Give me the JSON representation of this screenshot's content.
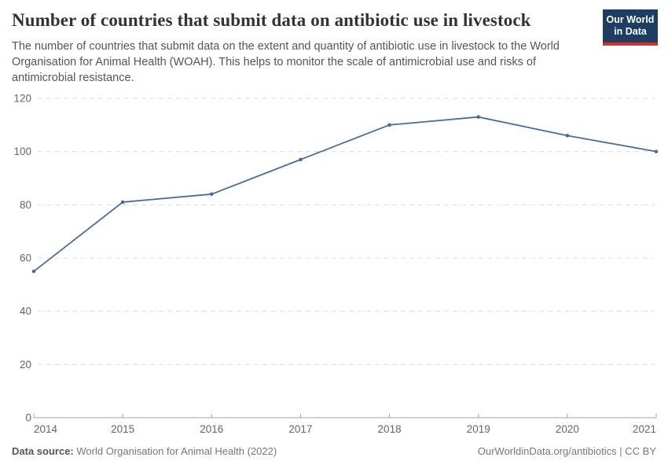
{
  "header": {
    "title": "Number of countries that submit data on antibiotic use in livestock",
    "logo": {
      "line1": "Our World",
      "line2": "in Data"
    }
  },
  "subtitle": "The number of countries that submit data on the extent and quantity of antibiotic use in livestock to the World Organisation for Animal Health (WOAH). This helps to monitor the scale of antimicrobial use and risks of antimicrobial resistance.",
  "chart_data": {
    "type": "line",
    "title": "Number of countries that submit data on antibiotic use in livestock",
    "x": [
      2014,
      2015,
      2016,
      2017,
      2018,
      2019,
      2020,
      2021
    ],
    "values": [
      55,
      81,
      84,
      97,
      110,
      113,
      106,
      100
    ],
    "xlabel": "",
    "ylabel": "",
    "ylim": [
      0,
      120
    ],
    "yticks": [
      0,
      20,
      40,
      60,
      80,
      100,
      120
    ],
    "grid": "horizontal-dashed",
    "legend": "none",
    "color": "#4c6aa0"
  },
  "footer": {
    "source_label": "Data source:",
    "source_value": "World Organisation for Animal Health (2022)",
    "credit": "OurWorldinData.org/antibiotics | CC BY"
  },
  "colors": {
    "line": "#4c6aa0",
    "logo_bg": "#1d3d63",
    "logo_red": "#cc3333",
    "title": "#333333",
    "subtitle": "#555555",
    "axis_label": "#666666",
    "grid": "#dddddd",
    "axis_line": "#a3a3a3",
    "footer": "#777777"
  }
}
